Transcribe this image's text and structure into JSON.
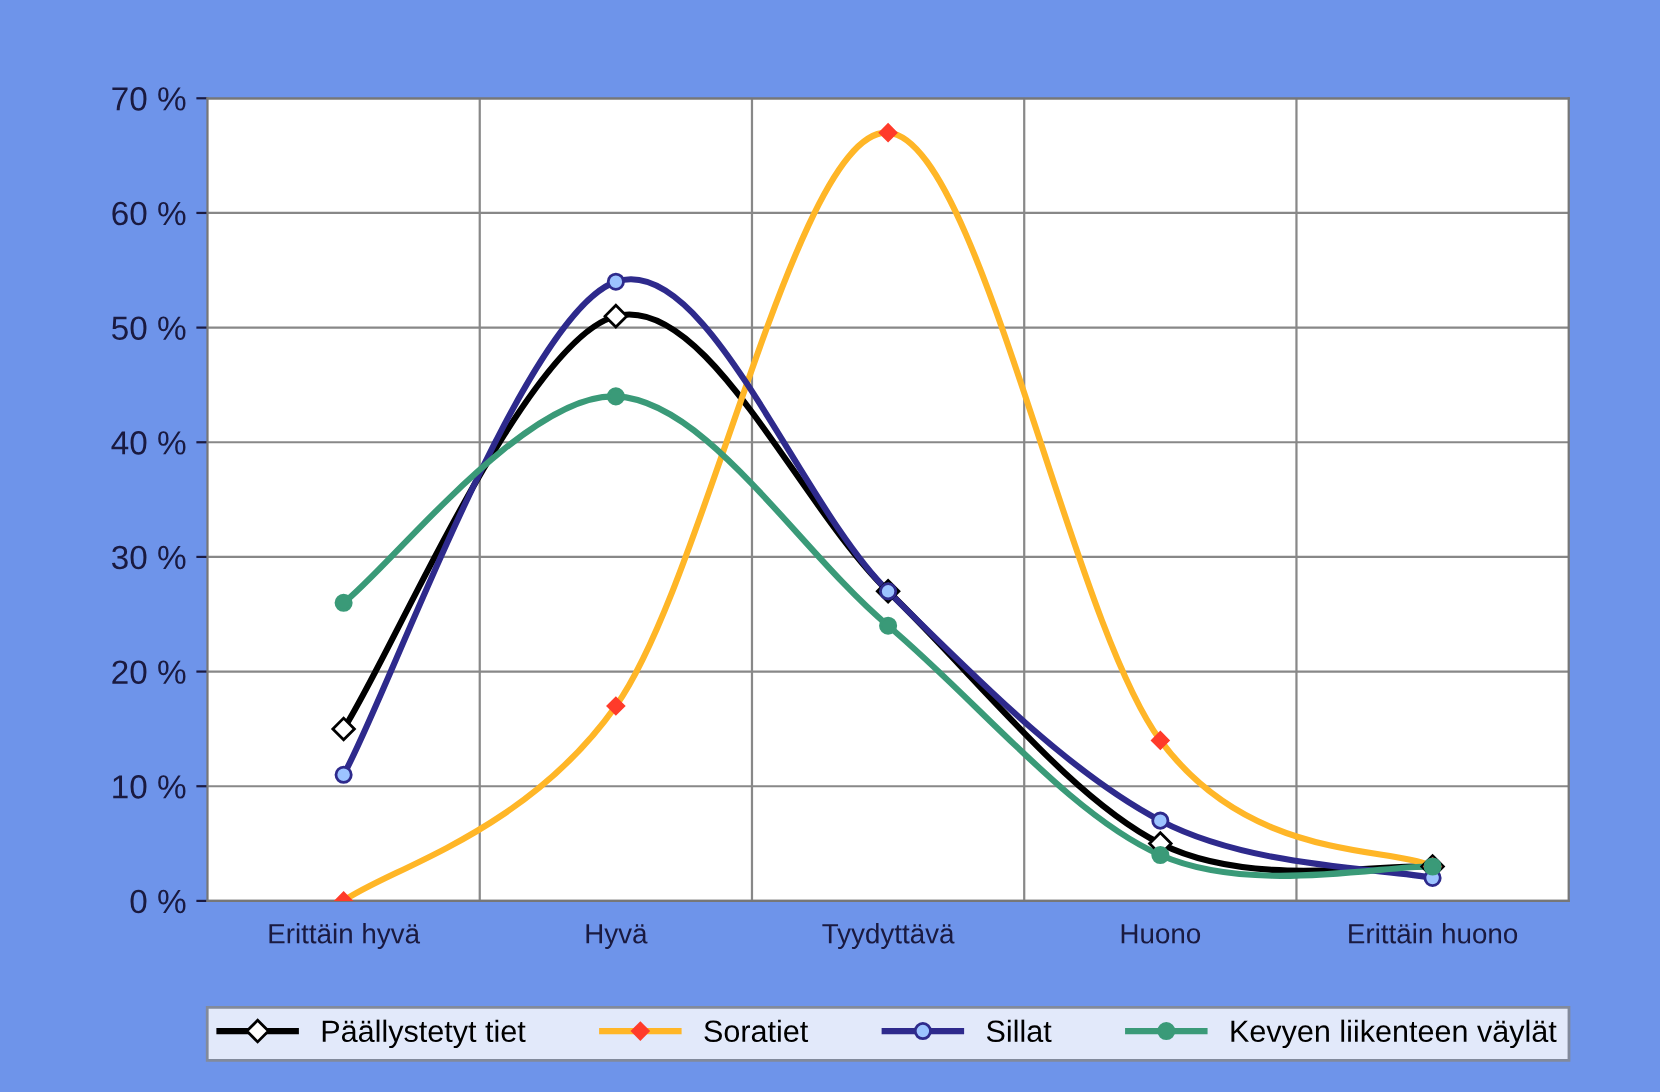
{
  "chart_data": {
    "type": "line",
    "categories": [
      "Erittäin hyvä",
      "Hyvä",
      "Tyydyttävä",
      "Huono",
      "Erittäin huono"
    ],
    "series": [
      {
        "name": "Päällystetyt tiet",
        "color": "#000000",
        "marker": "diamond",
        "values": [
          15,
          51,
          27,
          5,
          3
        ]
      },
      {
        "name": "Soratiet",
        "color": "#ffb627",
        "marker": "diamond",
        "values": [
          0,
          17,
          67,
          14,
          3
        ]
      },
      {
        "name": "Sillat",
        "color": "#2e2a8c",
        "marker": "circle",
        "values": [
          11,
          54,
          27,
          7,
          2
        ]
      },
      {
        "name": "Kevyen liikenteen väylät",
        "color": "#3a9a78",
        "marker": "circle",
        "values": [
          26,
          44,
          24,
          4,
          3
        ]
      }
    ],
    "ylim": [
      0,
      70
    ],
    "yticks": [
      {
        "value": 0,
        "label": "0 %"
      },
      {
        "value": 10,
        "label": "10 %"
      },
      {
        "value": 20,
        "label": "20 %"
      },
      {
        "value": 30,
        "label": "30 %"
      },
      {
        "value": 40,
        "label": "40 %"
      },
      {
        "value": 50,
        "label": "50 %"
      },
      {
        "value": 60,
        "label": "60 %"
      },
      {
        "value": 70,
        "label": "70 %"
      }
    ],
    "grid": true,
    "legend": "bottom"
  }
}
